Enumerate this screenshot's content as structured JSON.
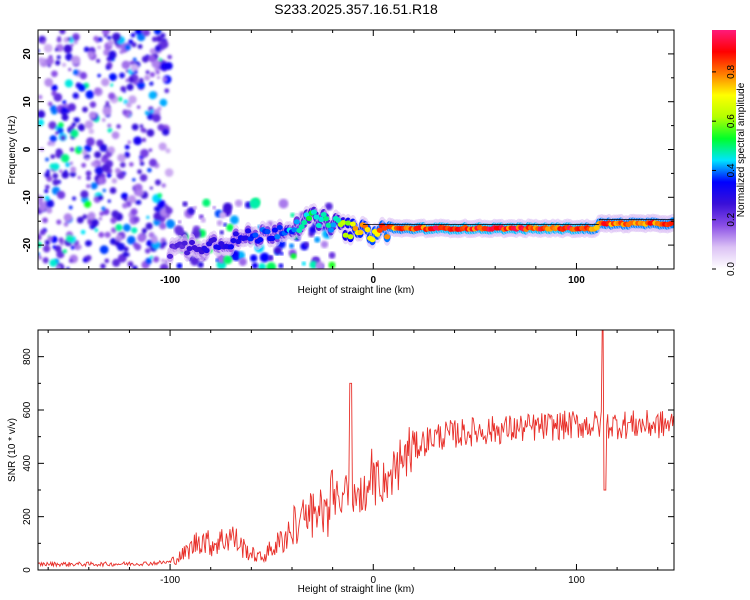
{
  "title": "S233.2025.357.16.51.R18",
  "chart_data": [
    {
      "type": "heatmap",
      "name": "spectrogram",
      "xlabel": "Height of straight line (km)",
      "ylabel": "Frequency (Hz)",
      "xlim": [
        -165,
        148
      ],
      "ylim": [
        -25,
        25
      ],
      "xticks": [
        -100,
        0,
        100
      ],
      "xtick_labels": [
        "-100",
        "0",
        "100"
      ],
      "yticks": [
        -20,
        -10,
        0,
        10,
        20
      ],
      "ytick_labels": [
        "-20",
        "-10",
        "0",
        "10",
        "20"
      ],
      "noise_region_x": [
        -165,
        -100
      ],
      "signal_track": {
        "x": [
          -100,
          -85,
          -70,
          -55,
          -40,
          -30,
          -20,
          -10,
          0,
          10,
          30,
          60,
          80,
          100,
          110,
          111,
          148
        ],
        "freq": [
          -21,
          -20,
          -19,
          -18,
          -16,
          -14.5,
          -15.5,
          -17,
          -17.5,
          -16.5,
          -16.5,
          -16.5,
          -16.5,
          -16.5,
          -16.5,
          -15.5,
          -15.5
        ],
        "amplitude": [
          0.25,
          0.3,
          0.35,
          0.4,
          0.45,
          0.55,
          0.5,
          0.8,
          0.85,
          0.9,
          0.95,
          0.95,
          0.95,
          0.95,
          0.9,
          0.9,
          0.9
        ]
      },
      "colorbar": {
        "label": "Normalized spectral amplitude",
        "range": [
          0,
          0.97
        ],
        "ticks": [
          0.0,
          0.2,
          0.4,
          0.6,
          0.8
        ],
        "tick_labels": [
          "0.0",
          "0.2",
          "0.4",
          "0.6",
          "0.8"
        ],
        "colors": [
          "#ffffff",
          "#dcc2f5",
          "#8a4ee6",
          "#3a10d8",
          "#0000ff",
          "#00e4ff",
          "#00ff2a",
          "#b4ff00",
          "#ffff00",
          "#ff7a00",
          "#ff0000",
          "#ff1a7a"
        ]
      }
    },
    {
      "type": "line",
      "name": "snr",
      "xlabel": "Height of straight line (km)",
      "ylabel": "SNR (10 * v/v)",
      "xlim": [
        -165,
        148
      ],
      "ylim": [
        0,
        900
      ],
      "xticks": [
        -100,
        0,
        100
      ],
      "xtick_labels": [
        "-100",
        "0",
        "100"
      ],
      "yticks": [
        0,
        200,
        400,
        600,
        800
      ],
      "ytick_labels": [
        "0",
        "200",
        "400",
        "600",
        "800"
      ],
      "series": [
        {
          "name": "SNR",
          "color": "#e8302a",
          "x": [
            -165,
            -150,
            -130,
            -110,
            -100,
            -95,
            -90,
            -85,
            -80,
            -75,
            -70,
            -65,
            -60,
            -55,
            -50,
            -45,
            -40,
            -35,
            -30,
            -25,
            -20,
            -15,
            -12,
            -10,
            -5,
            0,
            5,
            10,
            15,
            20,
            30,
            40,
            50,
            60,
            70,
            80,
            90,
            100,
            105,
            110,
            112,
            113,
            114,
            116,
            120,
            130,
            140,
            148
          ],
          "values": [
            22,
            22,
            22,
            25,
            30,
            50,
            80,
            120,
            95,
            110,
            130,
            90,
            60,
            45,
            80,
            110,
            160,
            180,
            200,
            230,
            260,
            280,
            300,
            250,
            290,
            310,
            330,
            370,
            420,
            460,
            500,
            510,
            520,
            525,
            530,
            535,
            540,
            545,
            545,
            545,
            545,
            545,
            545,
            545,
            545,
            545,
            545,
            545
          ],
          "spikes": [
            {
              "x": -11,
              "value": 700
            },
            {
              "x": 113,
              "value": 900
            },
            {
              "x": 114,
              "value": 300
            }
          ]
        }
      ]
    }
  ]
}
